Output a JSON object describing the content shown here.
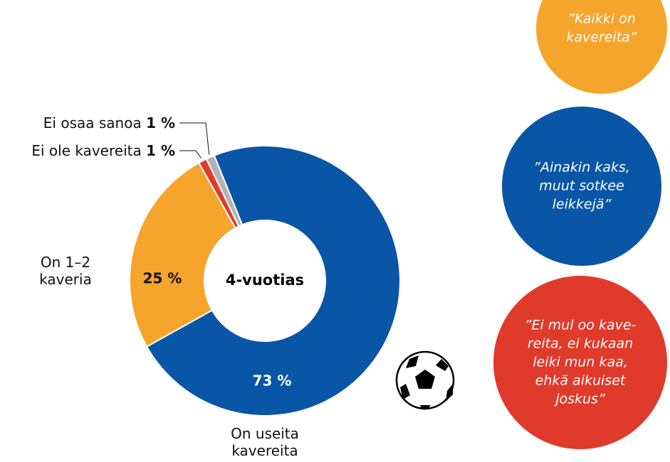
{
  "chart_data": {
    "type": "donut",
    "center_label": "4-vuotias",
    "categories": [
      "On useita kavereita",
      "On 1–2 kaveria",
      "Ei ole kavereita",
      "Ei osaa sanoa"
    ],
    "values": [
      73,
      25,
      1,
      1
    ],
    "value_labels": [
      "73 %",
      "25 %",
      "1 %",
      "1 %"
    ],
    "colors": [
      "#0a56a6",
      "#f5a42c",
      "#e03a2b",
      "#b3b3b3"
    ]
  },
  "quotes": [
    {
      "color": "#f5a42c",
      "lines": [
        "”Kaikki on",
        "kavereita”"
      ]
    },
    {
      "color": "#0a56a6",
      "lines": [
        "”Ainakin kaks,",
        "muut sotkee",
        "leikkejä”"
      ]
    },
    {
      "color": "#e03a2b",
      "lines": [
        "”Ei mul oo kave-",
        "reita, ei kukaan",
        "leiki mun kaa,",
        "ehkä aikuiset",
        "joskus”"
      ]
    }
  ]
}
